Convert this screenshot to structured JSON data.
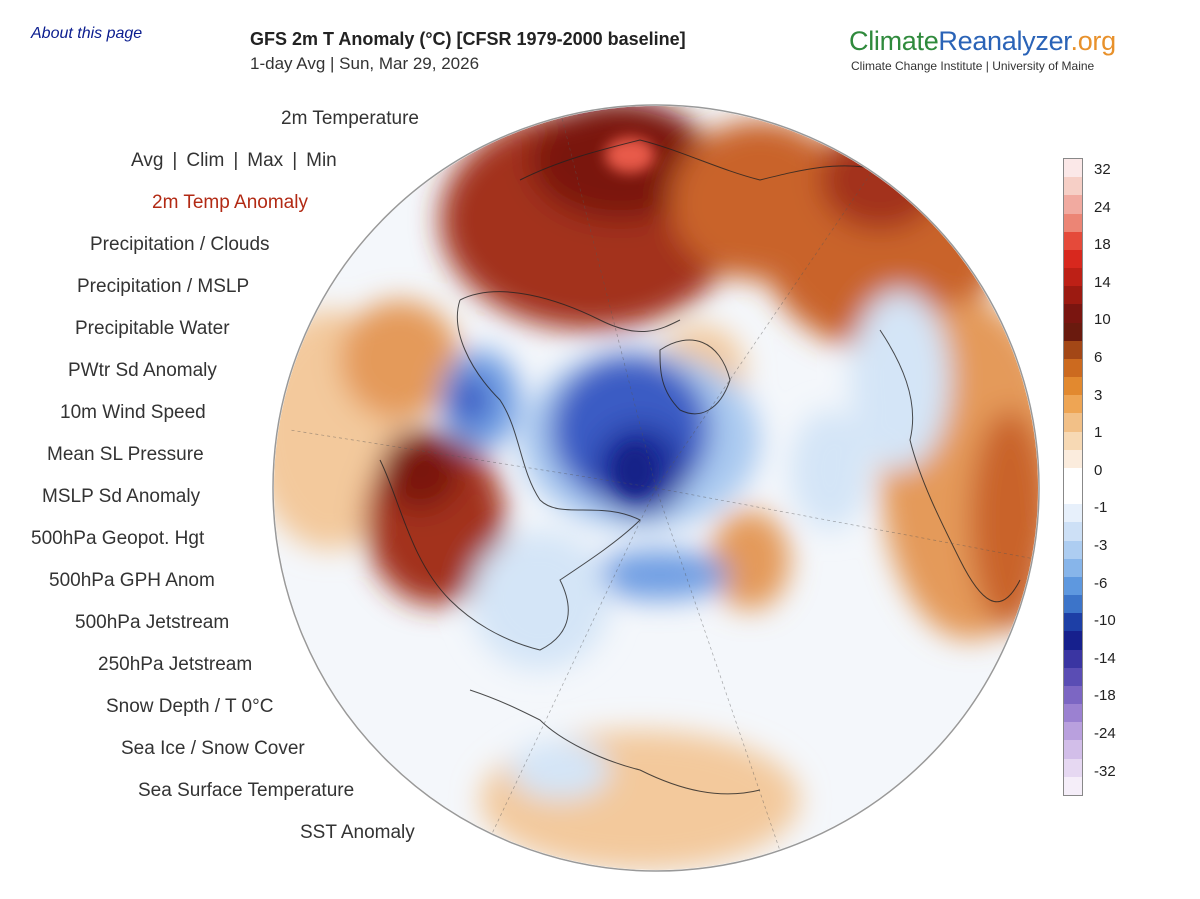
{
  "header": {
    "about_link": "About this page",
    "title": "GFS 2m T Anomaly (°C) [CFSR 1979-2000 baseline]",
    "subtitle": "1-day Avg | Sun, Mar 29, 2026"
  },
  "brand": {
    "part1": "Climate",
    "part2": "Reanalyzer",
    "part3": ".org",
    "subline": "Climate Change Institute | University of Maine",
    "colors": {
      "climate": "#2f8a3c",
      "reanalyzer": "#2a63b7",
      "org": "#e8912b"
    }
  },
  "menu": {
    "heading": "2m Temperature",
    "sub_items": [
      "Avg",
      "Clim",
      "Max",
      "Min"
    ],
    "items": [
      "2m Temp Anomaly",
      "Precipitation / Clouds",
      "Precipitation / MSLP",
      "Precipitable Water",
      "PWtr Sd Anomaly",
      "10m Wind Speed",
      "Mean SL Pressure",
      "MSLP Sd Anomaly",
      "500hPa Geopot. Hgt",
      "500hPa GPH Anom",
      "500hPa Jetstream",
      "250hPa Jetstream",
      "Snow Depth / T 0°C",
      "Sea Ice / Snow Cover",
      "Sea Surface Temperature",
      "SST Anomaly"
    ],
    "active_item": "2m Temp Anomaly",
    "active_color": "#b22a14"
  },
  "colorbar": {
    "labels": [
      "32",
      "24",
      "18",
      "14",
      "10",
      "6",
      "3",
      "1",
      "0",
      "-1",
      "-3",
      "-6",
      "-10",
      "-14",
      "-18",
      "-24",
      "-32"
    ],
    "colors": [
      "#fbe8e8",
      "#f6cfc6",
      "#f1aaa0",
      "#ec8575",
      "#e54a3a",
      "#d8281e",
      "#bd2016",
      "#9c1a11",
      "#7a1510",
      "#6a1a0e",
      "#a34716",
      "#cc6a1f",
      "#e2892f",
      "#eea554",
      "#f2c087",
      "#f7d9b4",
      "#fbecdd",
      "#ffffff",
      "#ffffff",
      "#e7f0fb",
      "#cde0f6",
      "#adcdf1",
      "#87b5ea",
      "#5e98df",
      "#3c74c9",
      "#1d3fa6",
      "#16208d",
      "#3a35a2",
      "#5a4db4",
      "#7c66c3",
      "#9b81d1",
      "#b9a0de",
      "#d2bee9",
      "#e6d8f2",
      "#f5eef9"
    ]
  },
  "map": {
    "ocean_color": "#f4f7fb",
    "warm_colors": [
      "#7a1510",
      "#a3301a",
      "#c9632c",
      "#e49a5a",
      "#f3c99c"
    ],
    "cold_colors": [
      "#1d2f9a",
      "#3a5cc4",
      "#6f9ee3",
      "#a9c9f0",
      "#d4e5f7"
    ]
  }
}
